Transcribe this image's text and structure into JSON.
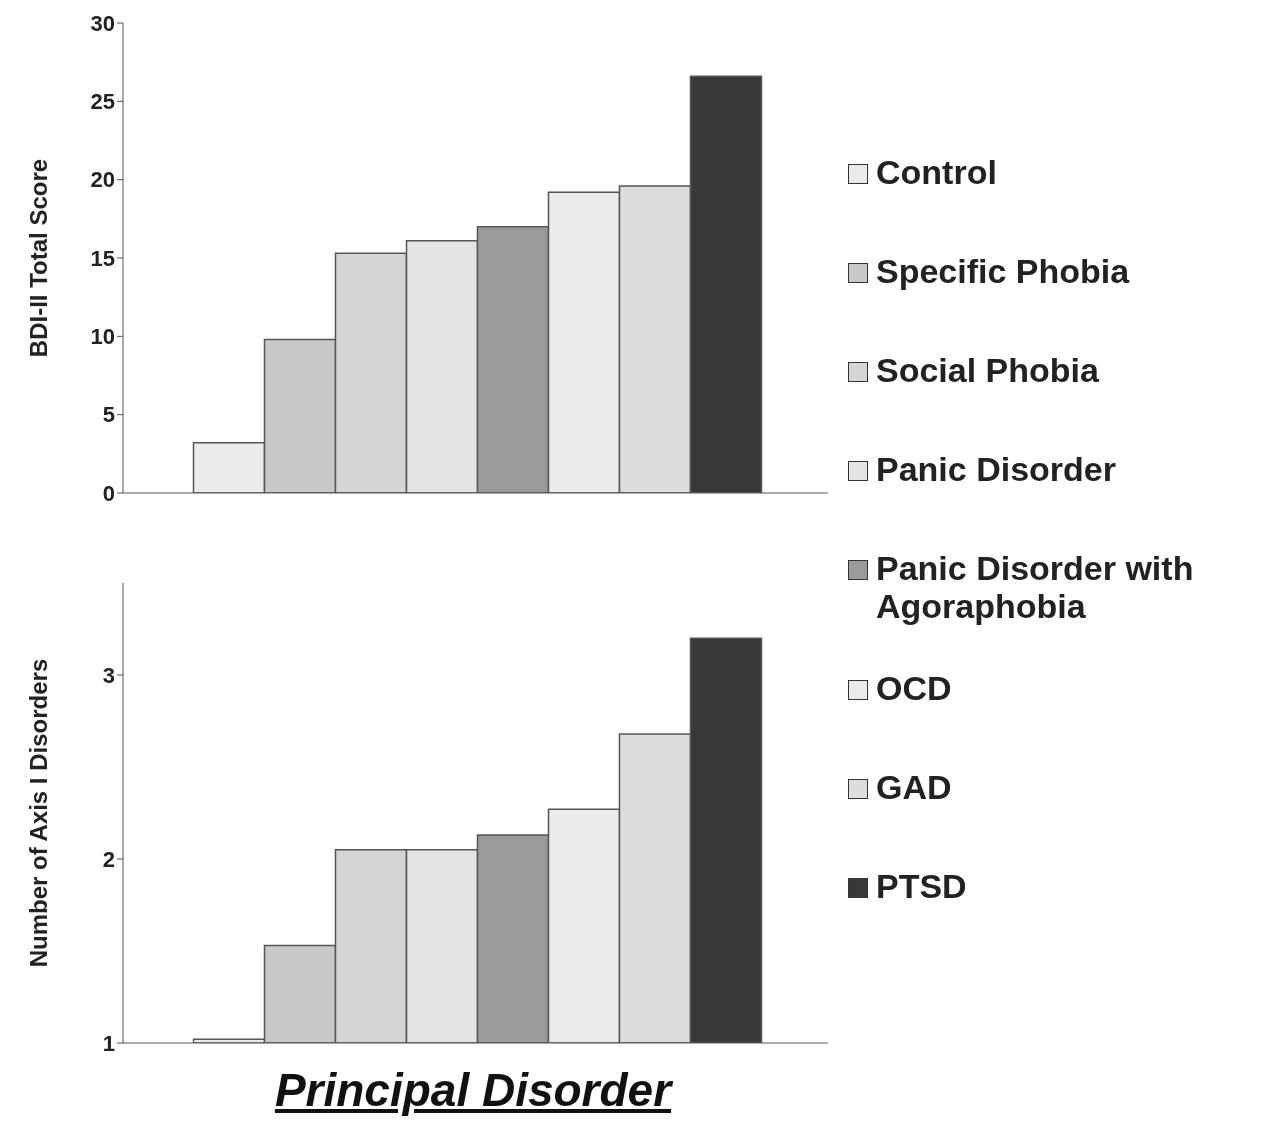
{
  "chart_data": [
    {
      "type": "bar",
      "ylabel": "BDI-II Total Score",
      "categories": [
        null
      ],
      "ylim": [
        0,
        30
      ],
      "yticks": [
        0,
        5,
        10,
        15,
        20,
        25,
        30
      ],
      "tick_labels": "y",
      "legend": "right",
      "series": [
        {
          "name": "Control",
          "color": "#ebebeb",
          "values": [
            3.2
          ]
        },
        {
          "name": "Specific Phobia",
          "color": "#c8c8c8",
          "values": [
            9.8
          ]
        },
        {
          "name": "Social Phobia",
          "color": "#d5d5d5",
          "values": [
            15.3
          ]
        },
        {
          "name": "Panic Disorder",
          "color": "#e4e4e4",
          "values": [
            16.1
          ]
        },
        {
          "name": "Panic Disorder with Agoraphobia",
          "color": "#9a9a9a",
          "values": [
            17.0
          ]
        },
        {
          "name": "OCD",
          "color": "#ebebeb",
          "values": [
            19.2
          ]
        },
        {
          "name": "GAD",
          "color": "#dddddd",
          "values": [
            19.6
          ]
        },
        {
          "name": "PTSD",
          "color": "#383838",
          "values": [
            26.6
          ]
        }
      ]
    },
    {
      "type": "bar",
      "ylabel": "Number of Axis I Disorders",
      "xlabel": "Principal Disorder",
      "categories": [
        null
      ],
      "ylim": [
        1,
        3.5
      ],
      "yticks": [
        1,
        2,
        3
      ],
      "tick_labels": "y",
      "series": [
        {
          "color": "#ebebeb",
          "values": [
            1.02
          ]
        },
        {
          "color": "#c8c8c8",
          "values": [
            1.53
          ]
        },
        {
          "color": "#d5d5d5",
          "values": [
            2.05
          ]
        },
        {
          "color": "#e4e4e4",
          "values": [
            2.05
          ]
        },
        {
          "color": "#9a9a9a",
          "values": [
            2.13
          ]
        },
        {
          "color": "#ebebeb",
          "values": [
            2.27
          ]
        },
        {
          "color": "#dddddd",
          "values": [
            2.68
          ]
        },
        {
          "color": "#383838",
          "values": [
            3.2
          ]
        }
      ]
    }
  ]
}
